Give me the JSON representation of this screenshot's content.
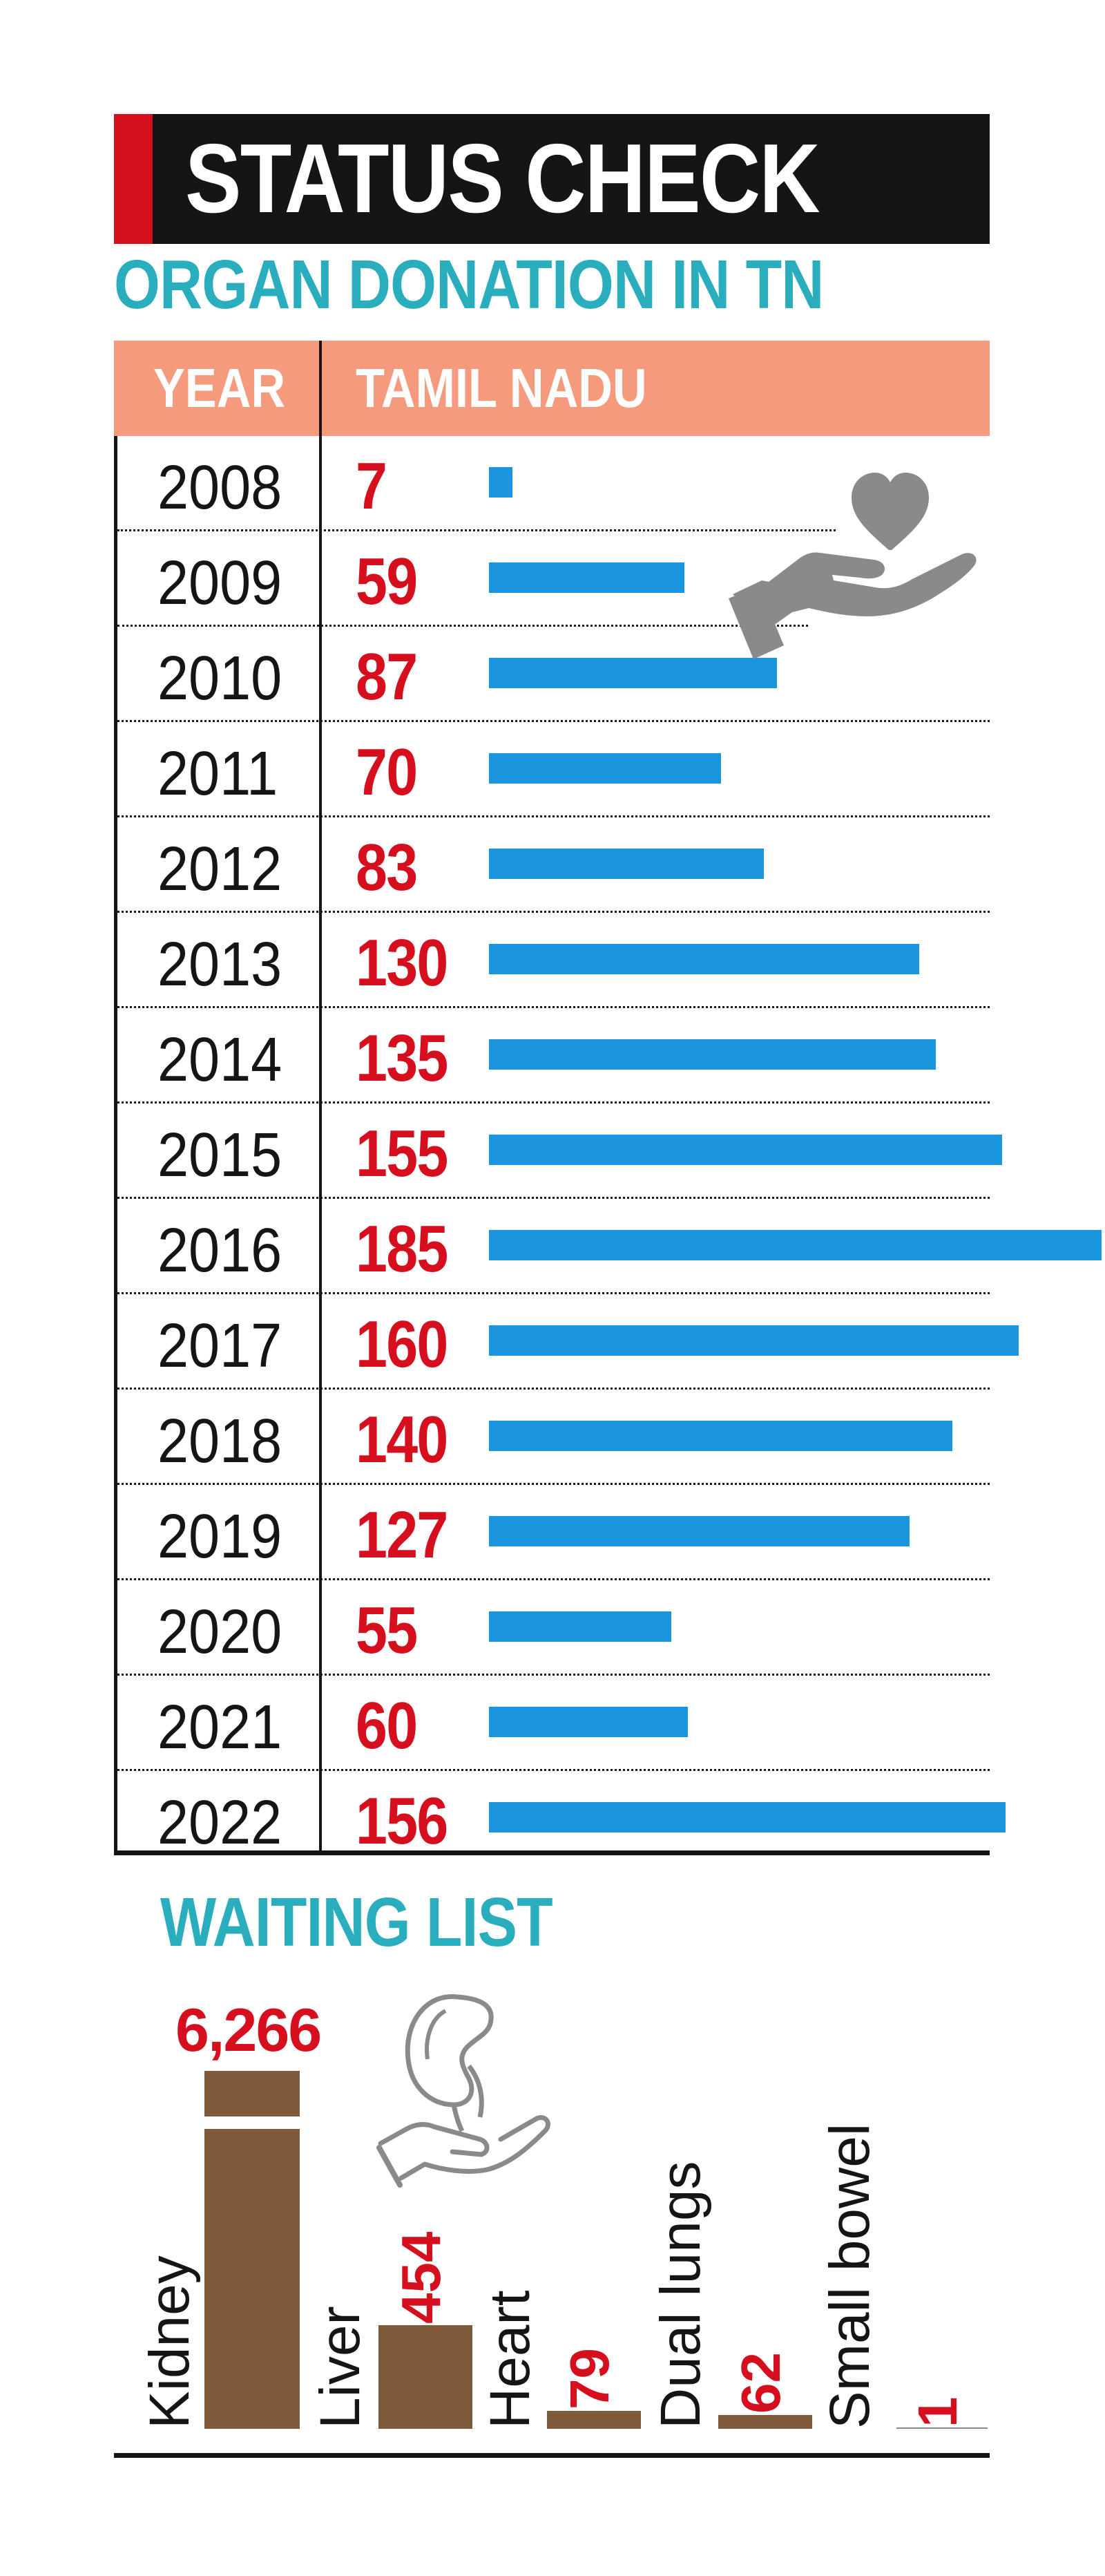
{
  "header": {
    "title": "STATUS CHECK",
    "subtitle": "ORGAN DONATION IN TN",
    "accent_color": "#d60f1e",
    "title_color": "#2aaebe"
  },
  "table": {
    "year_header": "YEAR",
    "value_header": "TAMIL NADU",
    "header_color": "#f59a7c",
    "bar_color": "#1a96df",
    "value_color": "#d60f1e"
  },
  "waiting_list": {
    "title": "WAITING LIST",
    "bar_color": "#7f5a3a"
  },
  "icons": {
    "donation": "heart-in-hand-icon",
    "waiting": "kidney-in-hand-icon"
  },
  "chart_data": [
    {
      "type": "bar",
      "title": "ORGAN DONATION IN TN",
      "orientation": "horizontal",
      "categories": [
        "2008",
        "2009",
        "2010",
        "2011",
        "2012",
        "2013",
        "2014",
        "2015",
        "2016",
        "2017",
        "2018",
        "2019",
        "2020",
        "2021",
        "2022"
      ],
      "series": [
        {
          "name": "TAMIL NADU",
          "values": [
            7,
            59,
            87,
            70,
            83,
            130,
            135,
            155,
            185,
            160,
            140,
            127,
            55,
            60,
            156
          ]
        }
      ],
      "labels": [
        "7",
        "59",
        "87",
        "70",
        "83",
        "130",
        "135",
        "155",
        "185",
        "160",
        "140",
        "127",
        "55",
        "60",
        "156"
      ],
      "xlim": [
        0,
        185
      ],
      "grid": false,
      "legend": "none"
    },
    {
      "type": "bar",
      "title": "WAITING LIST",
      "orientation": "vertical",
      "categories": [
        "Kidney",
        "Liver",
        "Heart",
        "Dual lungs",
        "Small bowel"
      ],
      "values": [
        6266,
        454,
        79,
        62,
        1
      ],
      "labels": [
        "6,266",
        "454",
        "79",
        "62",
        "1"
      ],
      "axis_break": "Kidney bar",
      "grid": false,
      "legend": "none"
    }
  ]
}
